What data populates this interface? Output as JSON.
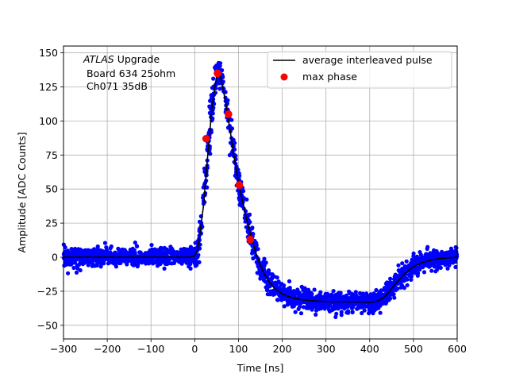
{
  "chart_data": {
    "type": "scatter",
    "title": "",
    "xlabel": "Time [ns]",
    "ylabel": "Amplitude [ADC Counts]",
    "xlim": [
      -300,
      600
    ],
    "ylim": [
      -60,
      155
    ],
    "xticks": [
      -300,
      -200,
      -100,
      0,
      100,
      200,
      300,
      400,
      500,
      600
    ],
    "yticks": [
      -50,
      -25,
      0,
      25,
      50,
      75,
      100,
      125,
      150
    ],
    "xtick_labels": [
      "−300",
      "−200",
      "−100",
      "0",
      "100",
      "200",
      "300",
      "400",
      "500",
      "600"
    ],
    "ytick_labels": [
      "−50",
      "−25",
      "0",
      "25",
      "50",
      "75",
      "100",
      "125",
      "150"
    ],
    "grid": true,
    "legend_position": "top-right",
    "annotation": {
      "experiment": "ATLAS",
      "suffix": " Upgrade",
      "line2": "Board 634 25ohm",
      "line3": "Ch071 35dB"
    },
    "colors": {
      "samples": "#0000ff",
      "average": "#000000",
      "max_phase": "#ff0000"
    },
    "series": [
      {
        "name": "average interleaved pulse",
        "kind": "line",
        "x": [
          -300,
          -250,
          -200,
          -150,
          -100,
          -50,
          -10,
          0,
          5,
          10,
          20,
          30,
          40,
          50,
          55,
          60,
          70,
          80,
          90,
          100,
          110,
          120,
          130,
          140,
          150,
          160,
          170,
          180,
          200,
          220,
          240,
          260,
          280,
          300,
          320,
          340,
          360,
          380,
          400,
          410,
          420,
          430,
          440,
          450,
          460,
          480,
          500,
          520,
          540,
          560,
          580,
          600
        ],
        "y": [
          0,
          0,
          0,
          0,
          0,
          0,
          0,
          1,
          4,
          12,
          38,
          76,
          112,
          133,
          135,
          131,
          115,
          95,
          74,
          55,
          40,
          26,
          14,
          3,
          -6,
          -13,
          -18,
          -22,
          -27,
          -29.5,
          -31,
          -31.8,
          -32.2,
          -32.5,
          -32.6,
          -32.7,
          -32.8,
          -32.8,
          -33,
          -32.8,
          -32,
          -30,
          -27,
          -23,
          -19,
          -12,
          -7,
          -4,
          -2,
          -1,
          -0.5,
          0
        ]
      },
      {
        "name": "max phase",
        "kind": "markers",
        "x": [
          26,
          52,
          77,
          102,
          127
        ],
        "y": [
          87,
          135,
          105,
          53,
          13
        ]
      }
    ]
  }
}
